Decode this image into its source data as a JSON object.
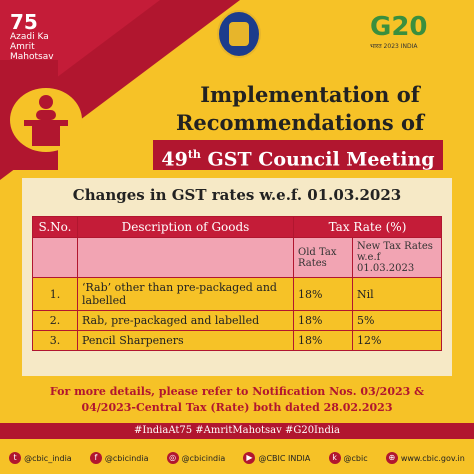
{
  "header": {
    "azadi_number": "75",
    "azadi_line1": "Azadi Ka",
    "azadi_line2": "Amrit Mahotsav",
    "g20_label": "G20",
    "g20_sub": "भारत 2023 INDIA"
  },
  "title": {
    "line1": "Implementation of",
    "line2": "Recommendations of",
    "meeting_num": "49",
    "meeting_sup": "th",
    "meeting_text": " GST Council Meeting"
  },
  "table": {
    "caption": "Changes in GST rates w.e.f. 01.03.2023",
    "headers": [
      "S.No.",
      "Description of Goods",
      "Tax Rate (%)"
    ],
    "subheaders": [
      "Old Tax Rates",
      "New Tax Rates w.e.f 01.03.2023"
    ],
    "rows": [
      {
        "sno": "1.",
        "desc": "‘Rab’ other than pre-packaged and labelled",
        "old": "18%",
        "new": "Nil"
      },
      {
        "sno": "2.",
        "desc": "Rab, pre-packaged and labelled",
        "old": "18%",
        "new": "5%"
      },
      {
        "sno": "3.",
        "desc": "Pencil Sharpeners",
        "old": "18%",
        "new": "12%"
      }
    ]
  },
  "footer": {
    "note_line1": "For more details, please refer to Notification Nos. 03/2023 &",
    "note_line2": "04/2023-Central Tax (Rate) both dated 28.02.2023",
    "hashtags": "#IndiaAt75   #AmritMahotsav   #G20India"
  },
  "social": [
    {
      "icon": "twitter-icon",
      "glyph": "t",
      "label": "@cbic_india"
    },
    {
      "icon": "facebook-icon",
      "glyph": "f",
      "label": "@cbicindia"
    },
    {
      "icon": "instagram-icon",
      "glyph": "◎",
      "label": "@cbicindia"
    },
    {
      "icon": "youtube-icon",
      "glyph": "▶",
      "label": "@CBIC INDIA"
    },
    {
      "icon": "koo-icon",
      "glyph": "k",
      "label": "@cbic"
    },
    {
      "icon": "globe-icon",
      "glyph": "⊕",
      "label": "www.cbic.gov.in"
    }
  ],
  "colors": {
    "red": "#b1162f",
    "yellow": "#f6c227",
    "cream": "#f6e9c6",
    "pink": "#f2a4b3"
  }
}
